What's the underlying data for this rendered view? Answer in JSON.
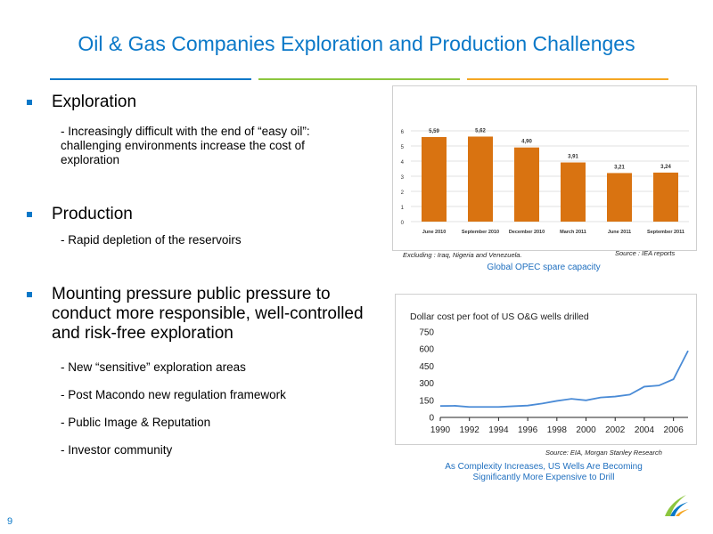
{
  "title": "Oil & Gas Companies Exploration and Production Challenges",
  "bullets": {
    "b1": {
      "heading": "Exploration",
      "sub": "- Increasingly difficult with the end of “easy oil”: challenging environments increase the cost of exploration"
    },
    "b2": {
      "heading": "Production",
      "sub": "- Rapid depletion of the reservoirs"
    },
    "b3": {
      "heading": "Mounting pressure public pressure to conduct more responsible, well-controlled and risk-free exploration",
      "subs": [
        "- New “sensitive” exploration areas",
        "- Post Macondo new regulation framework",
        "- Public Image & Reputation",
        "- Investor community"
      ]
    }
  },
  "opec": {
    "note_left": "Excluding  : Iraq, Nigeria and Venezuela.",
    "note_right": "Source : IEA reports",
    "caption": "Global OPEC spare capacity"
  },
  "wells": {
    "source": "Source: EIA, Morgan Stanley Research",
    "caption_line1": "As Complexity Increases, US Wells Are Becoming",
    "caption_line2": "Significantly More Expensive to Drill"
  },
  "slide_number": "9",
  "colors": {
    "accent_blue": "#0a78c8",
    "rule_green": "#8cc63f",
    "rule_orange": "#f5a623",
    "bar_orange": "#d97311",
    "line_blue": "#4a8bd6"
  },
  "chart_data": [
    {
      "type": "bar",
      "categories": [
        "June 2010",
        "September 2010",
        "December 2010",
        "March 2011",
        "June 2011",
        "September 2011"
      ],
      "values": [
        5.59,
        5.62,
        4.9,
        3.91,
        3.21,
        3.24
      ],
      "value_labels": [
        "5,59",
        "5,62",
        "4,90",
        "3,91",
        "3,21",
        "3,24"
      ],
      "ylim": [
        0,
        6
      ],
      "yticks": [
        "0",
        "1",
        "2",
        "3",
        "4",
        "5",
        "6"
      ],
      "grid": true
    },
    {
      "type": "line",
      "title": "Dollar cost per foot of US O&G wells drilled",
      "x": [
        1990,
        1991,
        1992,
        1993,
        1994,
        1995,
        1996,
        1997,
        1998,
        1999,
        2000,
        2001,
        2002,
        2003,
        2004,
        2005,
        2006,
        2007
      ],
      "values": [
        100,
        102,
        92,
        92,
        92,
        98,
        104,
        122,
        145,
        163,
        150,
        175,
        183,
        200,
        270,
        280,
        335,
        585
      ],
      "xticks": [
        "1990",
        "1992",
        "1994",
        "1996",
        "1998",
        "2000",
        "2002",
        "2004",
        "2006"
      ],
      "yticks": [
        "0",
        "150",
        "300",
        "450",
        "600",
        "750"
      ],
      "ylim": [
        0,
        750
      ]
    }
  ]
}
